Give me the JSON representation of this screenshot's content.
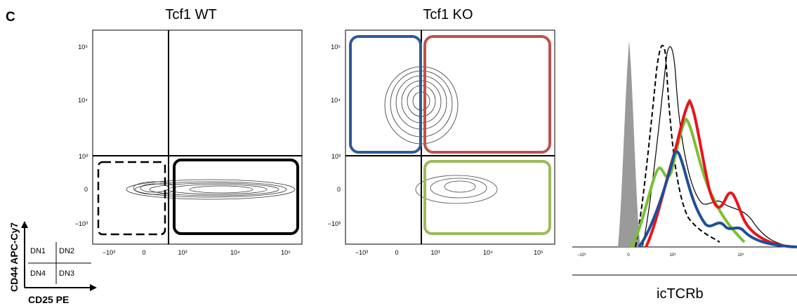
{
  "figure": {
    "panel_letter": "C",
    "key": {
      "y_label": "CD44 APC-Cy7",
      "x_label": "CD25 PE",
      "quadrants": [
        "DN1",
        "DN2",
        "DN4",
        "DN3"
      ]
    },
    "colors": {
      "dn1_gate_ko": "#2f5a96",
      "dn2_gate_ko": "#c0504d",
      "dn3_gate_ko": "#9bbb59",
      "gray_fill": "#9a9a9a",
      "red": "#e8141b",
      "green": "#7cbf34",
      "blue": "#1f4e98"
    }
  },
  "chart_data": [
    {
      "type": "scatter",
      "title": "Tcf1 WT",
      "xlabel": "",
      "ylabel": "",
      "x_ticks": [
        "−10³",
        "0",
        "10³",
        "10⁴",
        "10⁵"
      ],
      "y_ticks": [
        "10⁵",
        "10⁴",
        "10³",
        "0",
        "−10³"
      ],
      "gates": [
        "DN1 (dashed)",
        "DN3 (solid)"
      ]
    },
    {
      "type": "scatter",
      "title": "Tcf1 KO",
      "xlabel": "",
      "ylabel": "",
      "x_ticks": [
        "−10³",
        "0",
        "10³",
        "10⁴",
        "10⁵"
      ],
      "y_ticks": [
        "10⁵",
        "10⁴",
        "10³",
        "0",
        "−10³"
      ],
      "gates": [
        "DN1 (blue)",
        "DN2 (red)",
        "DN3 (green)"
      ]
    },
    {
      "type": "line",
      "title": "",
      "xlabel": "icTCRb",
      "ylabel": "",
      "x_ticks": [
        "−10³",
        "0",
        "10³",
        "10⁴"
      ],
      "series_note": "histogram overlay: gray filled, dashed black, solid black, red, green, blue"
    }
  ]
}
